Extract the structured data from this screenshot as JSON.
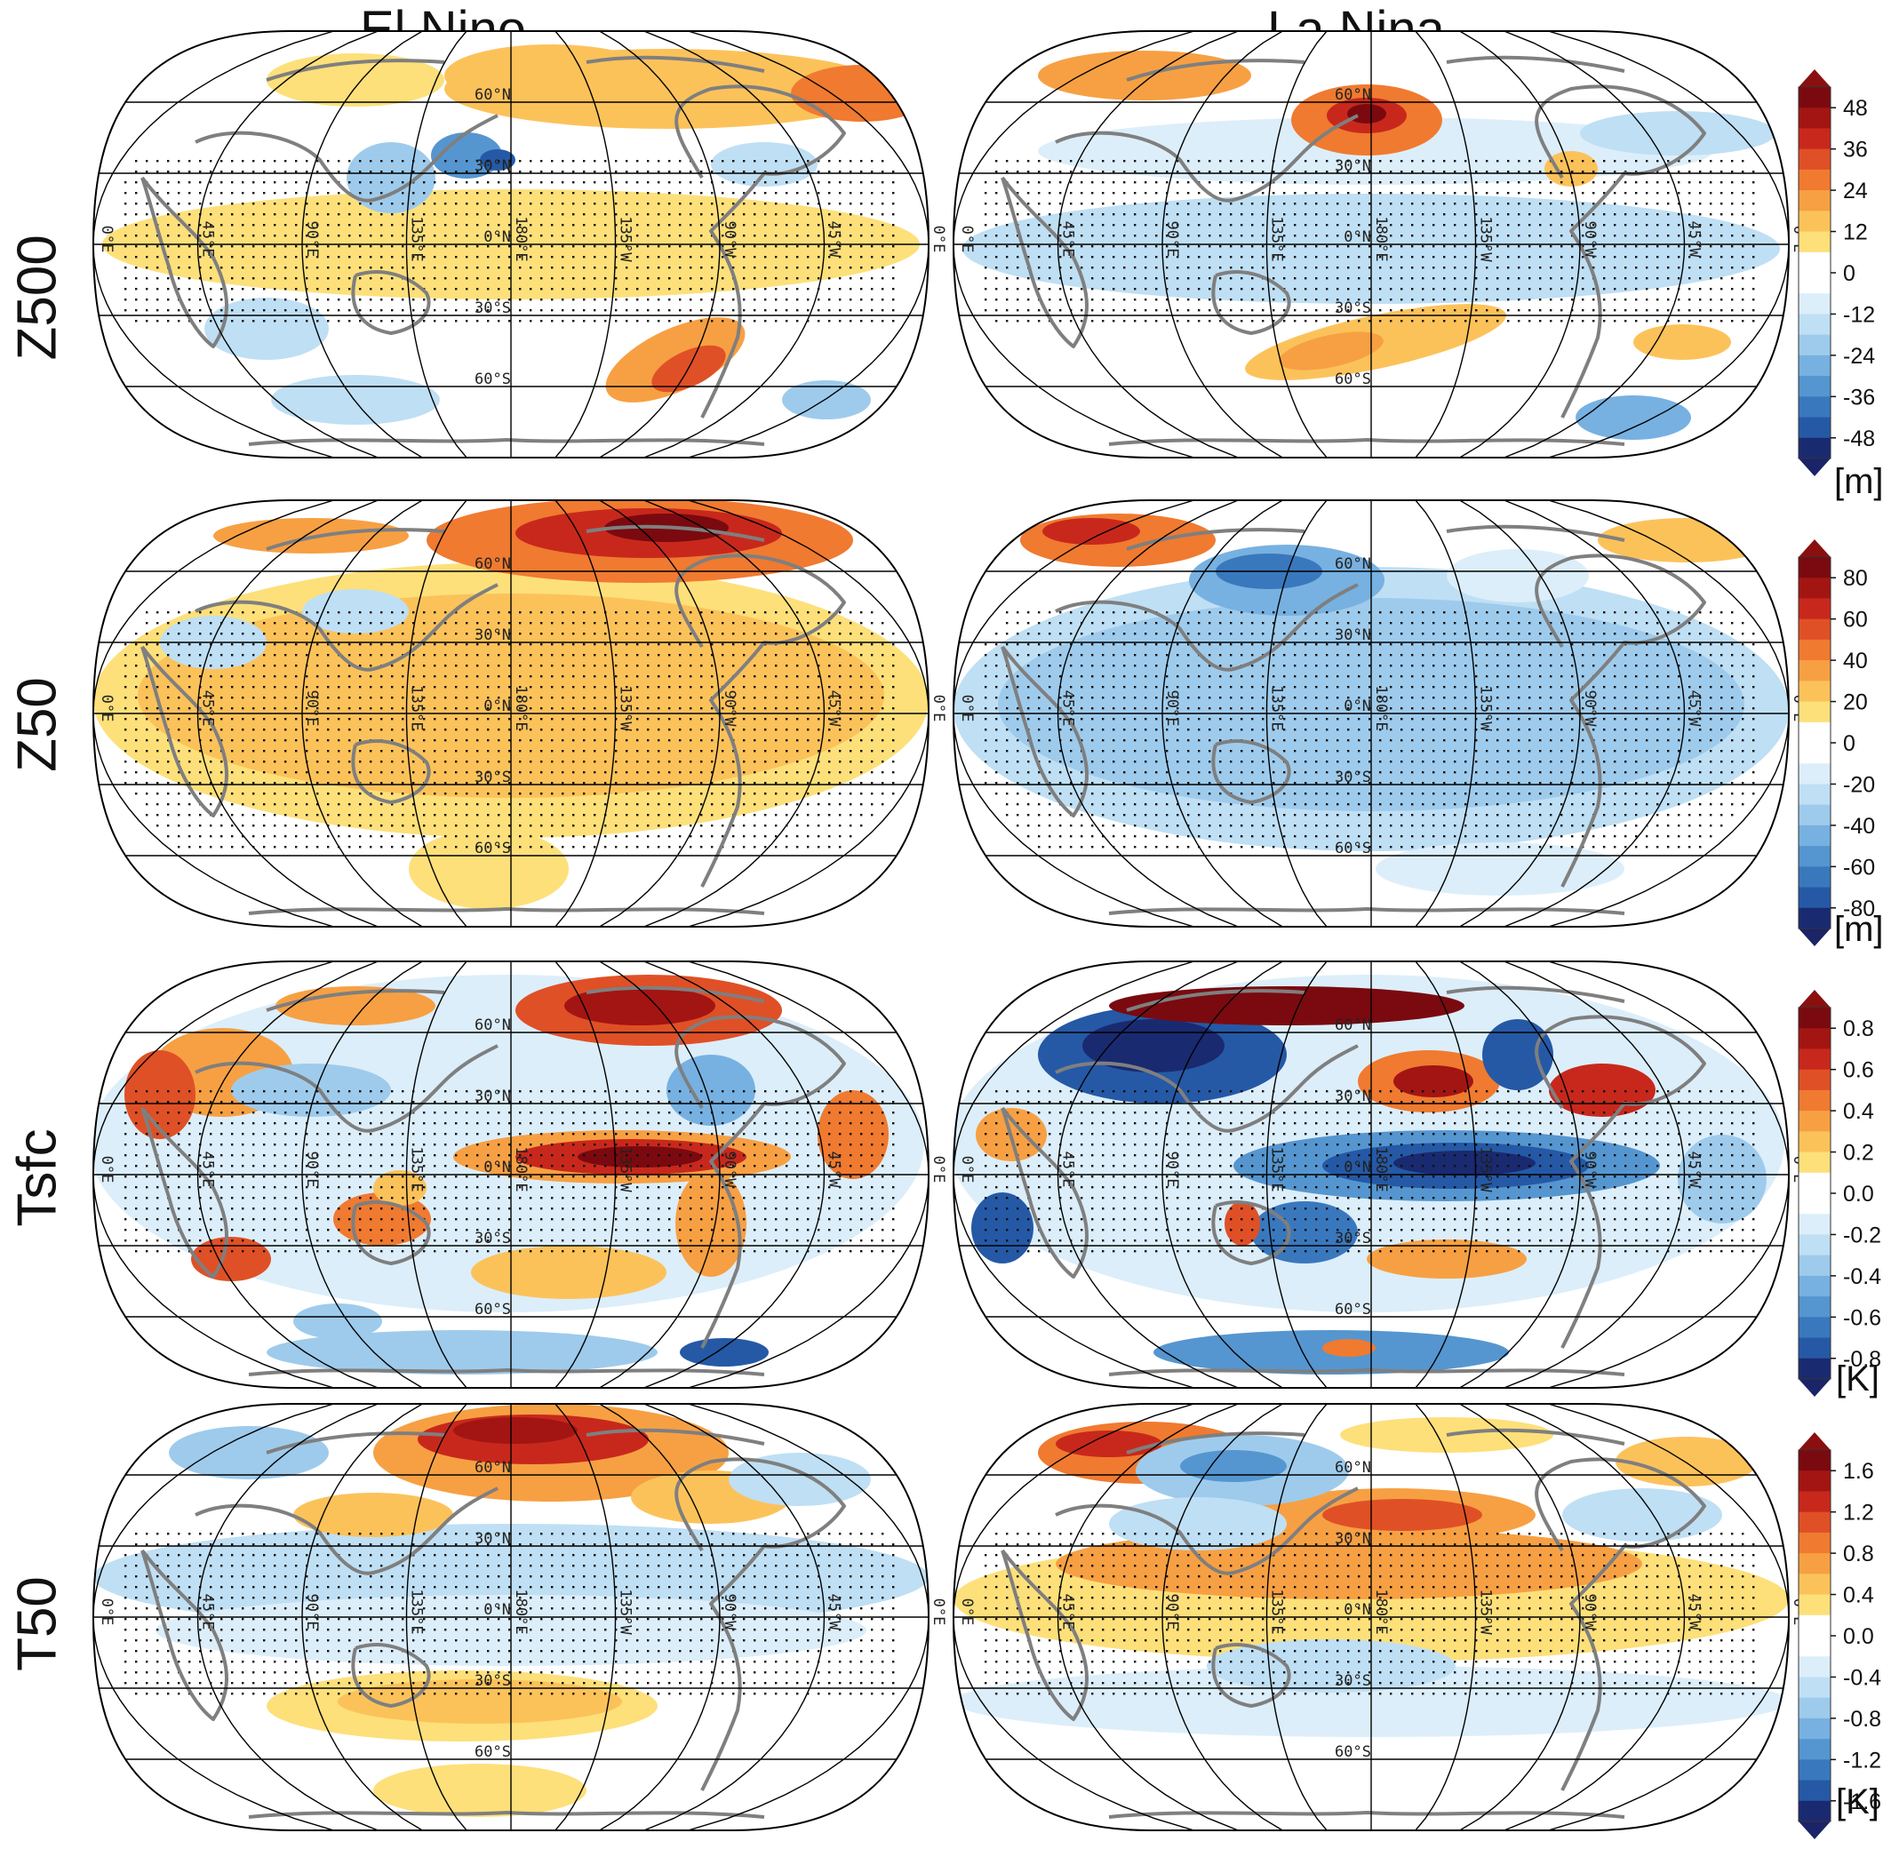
{
  "columns": [
    "El Nino",
    "La Nina"
  ],
  "rows": [
    {
      "label": "Z500",
      "unit": "[m]",
      "ticks": [
        "48",
        "36",
        "24",
        "12",
        "0",
        "-12",
        "-24",
        "-36",
        "-48"
      ],
      "panels": [
        {
          "name": "elnino-z500",
          "regime": "tropics-positive"
        },
        {
          "name": "lanina-z500",
          "regime": "tropics-negative"
        }
      ]
    },
    {
      "label": "Z50",
      "unit": "[m]",
      "ticks": [
        "80",
        "60",
        "40",
        "20",
        "0",
        "-20",
        "-40",
        "-60",
        "-80"
      ],
      "panels": [
        {
          "name": "elnino-z50",
          "regime": "tropics-strong-positive"
        },
        {
          "name": "lanina-z50",
          "regime": "tropics-strong-negative"
        }
      ]
    },
    {
      "label": "Tsfc",
      "unit": "[K]",
      "ticks": [
        "0.8",
        "0.6",
        "0.4",
        "0.2",
        "0.0",
        "-0.2",
        "-0.4",
        "-0.6",
        "-0.8"
      ],
      "panels": [
        {
          "name": "elnino-tsfc",
          "regime": "pacific-warm"
        },
        {
          "name": "lanina-tsfc",
          "regime": "pacific-cold"
        }
      ]
    },
    {
      "label": "T50",
      "unit": "[K]",
      "ticks": [
        "1.6",
        "1.2",
        "0.8",
        "0.4",
        "0.0",
        "-0.4",
        "-0.8",
        "-1.2",
        "-1.6"
      ],
      "panels": [
        {
          "name": "elnino-t50",
          "regime": "tropics-cool"
        },
        {
          "name": "lanina-t50",
          "regime": "tropics-warm"
        }
      ]
    }
  ],
  "lon_labels": [
    "0°E",
    "45°E",
    "90°E",
    "135°E",
    "180°E",
    "135°W",
    "90°W",
    "45°W",
    "0°E"
  ],
  "lat_labels": [
    "60°N",
    "30°N",
    "0°N",
    "30°S",
    "60°S"
  ],
  "colors": {
    "positive": [
      "#fff3a6",
      "#fde07a",
      "#fcc25a",
      "#f7a043",
      "#f07a30",
      "#e05026",
      "#c8281c",
      "#a31512",
      "#7a0a0f"
    ],
    "negative": [
      "#dceefa",
      "#bfdff4",
      "#9ecbec",
      "#77b1e1",
      "#5596d0",
      "#3a78bd",
      "#2559a6",
      "#1c3f8c",
      "#1a2a70"
    ],
    "land": "#7f7f7f",
    "grid": "#000000",
    "stipple": "#111111"
  }
}
